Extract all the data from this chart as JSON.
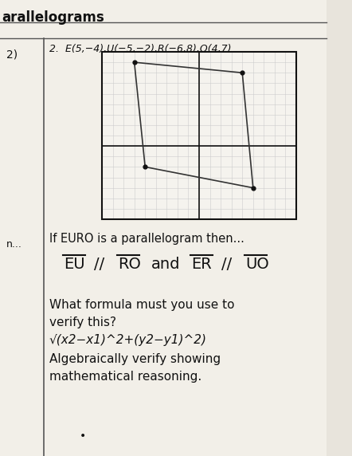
{
  "title_top": "arallelograms",
  "problem_number": "2)",
  "problem_label": "2.  E(5,−4),U(−5,−2),R(−6,8),O(4,7)",
  "points": {
    "E": [
      5,
      -4
    ],
    "U": [
      -5,
      -2
    ],
    "R": [
      -6,
      8
    ],
    "O": [
      4,
      7
    ]
  },
  "polygon_order": [
    "E",
    "O",
    "R",
    "U"
  ],
  "grid_xlim": [
    -9,
    9
  ],
  "grid_ylim": [
    -7,
    9
  ],
  "grid_color": "#bbbbbb",
  "axis_color": "#111111",
  "poly_color": "#333333",
  "poly_linewidth": 1.2,
  "background_color": "#e8e4dc",
  "paper_color": "#f2efe8",
  "text_color": "#111111",
  "line1": "If EURO is a parallelogram then...",
  "line3": "What formula must you use to",
  "line4": "verify this?",
  "line5": "√(x2−x1)^2+(y2−y1)^2)",
  "line6": "Algebraically verify showing",
  "line7": "mathematical reasoning.",
  "left_label": "n...",
  "parallel_fontsize": 14,
  "body_fontsize": 11
}
